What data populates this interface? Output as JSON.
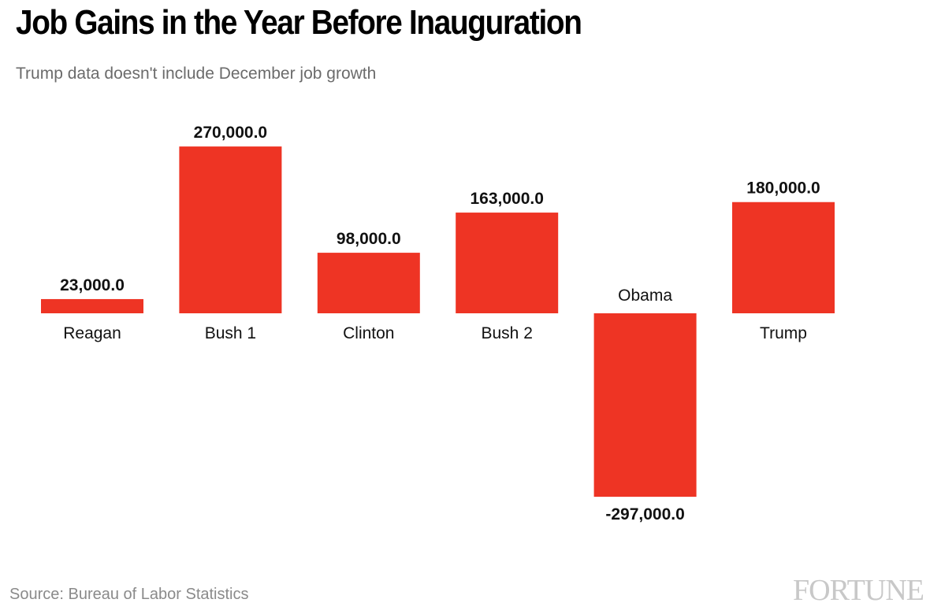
{
  "header": {
    "title": "Job Gains in the Year Before Inauguration",
    "subtitle": "Trump data doesn't include December job growth"
  },
  "footer": {
    "source": "Source: Bureau of Labor Statistics",
    "brand": "FORTUNE"
  },
  "chart_data": {
    "type": "bar",
    "title": "Job Gains in the Year Before Inauguration",
    "subtitle": "Trump data doesn't include December job growth",
    "xlabel": "",
    "ylabel": "",
    "categories": [
      "Reagan",
      "Bush 1",
      "Clinton",
      "Bush 2",
      "Obama",
      "Trump"
    ],
    "values": [
      23000,
      270000,
      98000,
      163000,
      -297000,
      180000
    ],
    "data_labels": [
      "23,000.0",
      "270,000.0",
      "98,000.0",
      "163,000.0",
      "-297,000.0",
      "180,000.0"
    ],
    "ylim": [
      -297000,
      270000
    ],
    "grid": false,
    "legend": "none",
    "bar_color": "#ee3424"
  }
}
